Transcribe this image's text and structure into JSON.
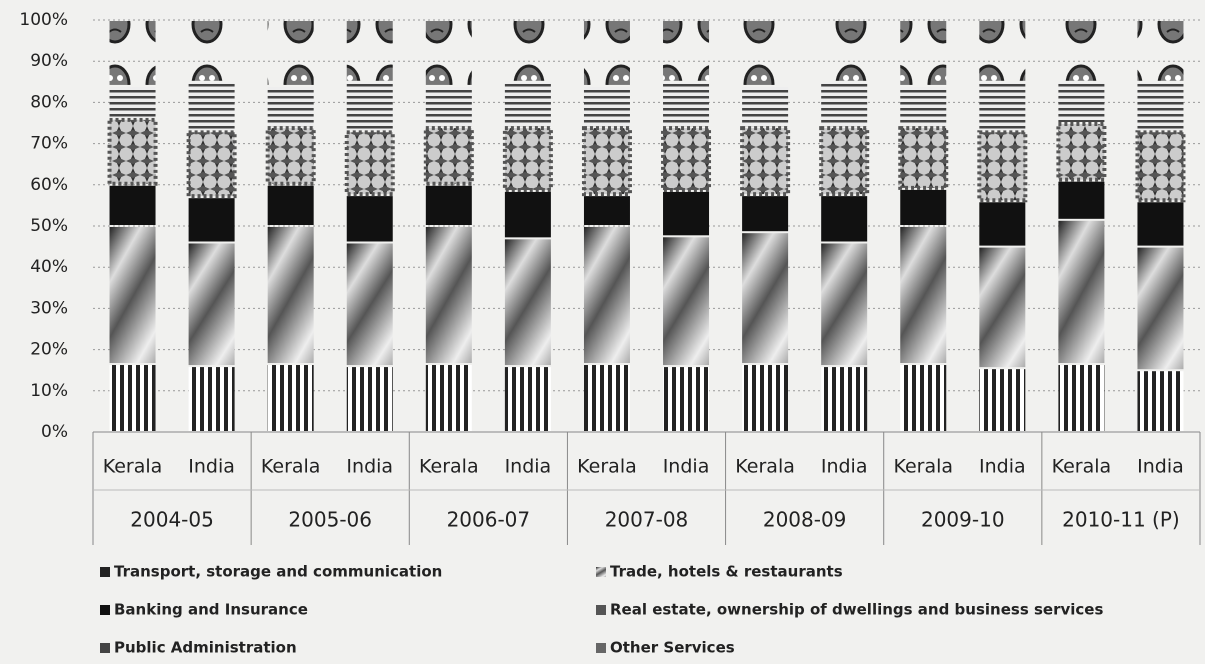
{
  "chart_data": {
    "type": "stacked_bar_100",
    "groups": [
      "2004-05",
      "2005-06",
      "2006-07",
      "2007-08",
      "2008-09",
      "2009-10",
      "2010-11 (P)"
    ],
    "categories": [
      "Kerala",
      "India",
      "Kerala",
      "India",
      "Kerala",
      "India",
      "Kerala",
      "India",
      "Kerala",
      "India",
      "Kerala",
      "India",
      "Kerala",
      "India"
    ],
    "series": [
      {
        "name": "Transport, storage and communication",
        "color": "#222222",
        "values": [
          16.5,
          16,
          16.5,
          16,
          16.5,
          16,
          16.5,
          16,
          16.5,
          16,
          16.5,
          15.5,
          16.5,
          15
        ]
      },
      {
        "name": "Trade, hotels & restaurants",
        "color": "#777777",
        "values": [
          33.5,
          30,
          33.5,
          30,
          33.5,
          31,
          33.5,
          31.5,
          32,
          30,
          33.5,
          29.5,
          35,
          30
        ]
      },
      {
        "name": "Banking and Insurance",
        "color": "#111111",
        "values": [
          10,
          11,
          10,
          11.5,
          10,
          11.5,
          7.5,
          11,
          9,
          11.5,
          9,
          11,
          9.5,
          11
        ]
      },
      {
        "name": "Real estate, ownership of dwellings and business services",
        "color": "#555555",
        "values": [
          16,
          16,
          14,
          15.5,
          14,
          15.5,
          16.5,
          15.5,
          16.5,
          16.5,
          15,
          17,
          14,
          17
        ]
      },
      {
        "name": "Public Administration",
        "color": "#444444",
        "values": [
          8,
          12,
          10,
          12,
          10,
          11,
          10,
          11,
          10,
          11,
          10,
          12,
          10,
          12
        ]
      },
      {
        "name": "Other Services",
        "color": "#666666",
        "values": [
          16,
          15,
          16,
          15,
          16,
          15,
          16,
          15,
          16,
          15,
          16,
          15,
          15,
          15
        ]
      }
    ],
    "ylim": [
      0,
      100
    ],
    "yticks": [
      {
        "value": 0,
        "label": "0%"
      },
      {
        "value": 10,
        "label": "10%"
      },
      {
        "value": 20,
        "label": "20%"
      },
      {
        "value": 30,
        "label": "30%"
      },
      {
        "value": 40,
        "label": "40%"
      },
      {
        "value": 50,
        "label": "50%"
      },
      {
        "value": 60,
        "label": "60%"
      },
      {
        "value": 70,
        "label": "70%"
      },
      {
        "value": 80,
        "label": "80%"
      },
      {
        "value": 90,
        "label": "90%"
      },
      {
        "value": 100,
        "label": "100%"
      }
    ],
    "grid": true,
    "legend": "bottom"
  }
}
